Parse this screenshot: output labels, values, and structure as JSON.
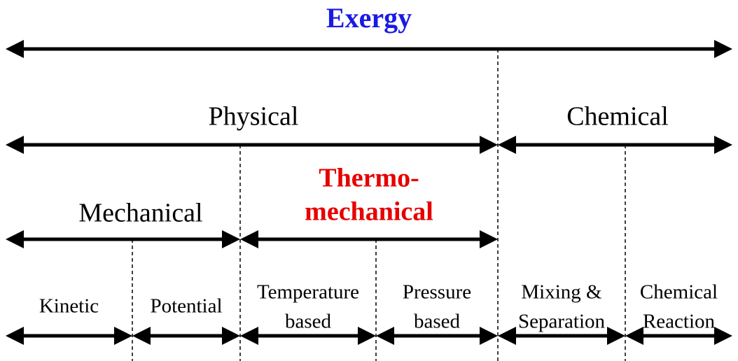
{
  "title": "Exergy",
  "level1": [
    {
      "label": "Physical"
    },
    {
      "label": "Chemical"
    }
  ],
  "level2": [
    {
      "label": "Mechanical"
    },
    {
      "lines": [
        "Thermo-",
        "mechanical"
      ]
    }
  ],
  "level3": [
    {
      "lines": [
        "Kinetic"
      ]
    },
    {
      "lines": [
        "Potential"
      ]
    },
    {
      "lines": [
        "Temperature",
        "based"
      ]
    },
    {
      "lines": [
        "Pressure",
        "based"
      ]
    },
    {
      "lines": [
        "Mixing &",
        "Separation"
      ]
    },
    {
      "lines": [
        "Chemical",
        "Reaction"
      ]
    }
  ]
}
